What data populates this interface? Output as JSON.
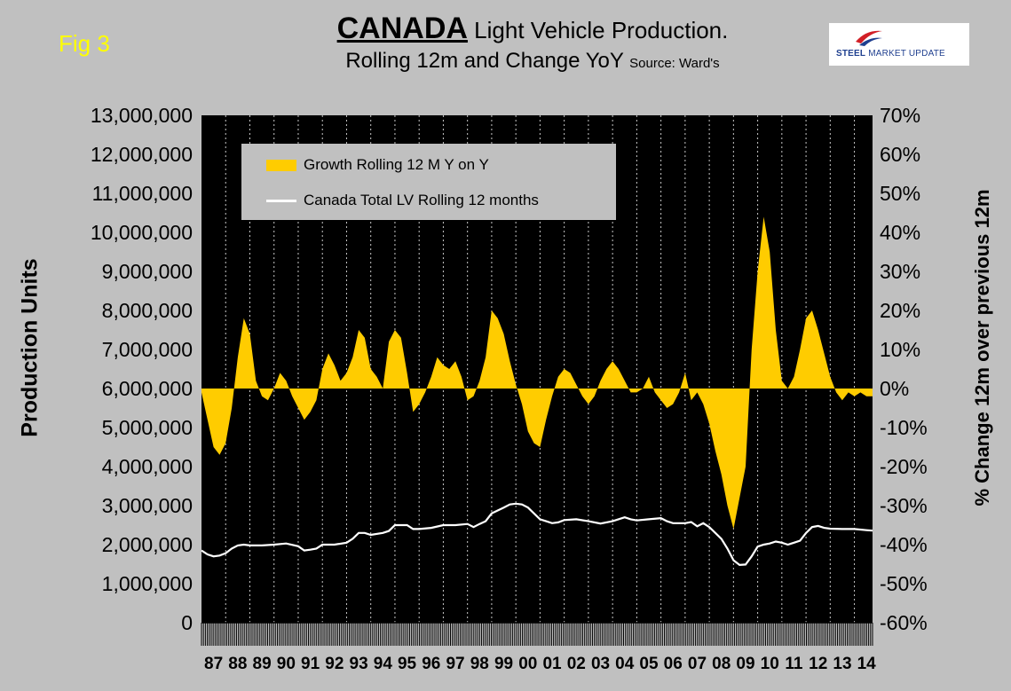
{
  "header": {
    "fig_label": "Fig 3",
    "title_main": "CANADA",
    "title_rest": "Light Vehicle Production.",
    "title_line2": "Rolling 12m and Change YoY",
    "source": "Source: Ward's",
    "logo_bold": "STEEL",
    "logo_rest": "MARKET UPDATE"
  },
  "chart_data": {
    "type": "area",
    "ylabel": "Production Units",
    "y2label": "% Change 12m over previous 12m",
    "left_axis": {
      "min": 0,
      "max": 13000000,
      "step": 1000000,
      "tick_labels": [
        "0",
        "1,000,000",
        "2,000,000",
        "3,000,000",
        "4,000,000",
        "5,000,000",
        "6,000,000",
        "7,000,000",
        "8,000,000",
        "9,000,000",
        "10,000,000",
        "11,000,000",
        "12,000,000",
        "13,000,000"
      ]
    },
    "right_axis": {
      "min": -60,
      "max": 70,
      "step": 10,
      "unit": "%",
      "tick_labels": [
        "-60%",
        "-50%",
        "-40%",
        "-30%",
        "-20%",
        "-10%",
        "0%",
        "10%",
        "20%",
        "30%",
        "40%",
        "50%",
        "60%",
        "70%"
      ]
    },
    "x_categories": [
      "87",
      "88",
      "89",
      "90",
      "91",
      "92",
      "93",
      "94",
      "95",
      "96",
      "97",
      "98",
      "99",
      "00",
      "01",
      "02",
      "03",
      "04",
      "05",
      "06",
      "07",
      "08",
      "09",
      "10",
      "11",
      "12",
      "13",
      "14"
    ],
    "x_range": [
      1987.0,
      2014.75
    ],
    "grid": "vertical-yearly",
    "legend_position": "top-left",
    "series": [
      {
        "name": "Growth Rolling 12 M Y on Y",
        "kind": "area",
        "axis": "right",
        "color": "#ffcc00",
        "points": [
          [
            1987.0,
            -1
          ],
          [
            1987.25,
            -8
          ],
          [
            1987.5,
            -15
          ],
          [
            1987.75,
            -17
          ],
          [
            1988.0,
            -14
          ],
          [
            1988.25,
            -5
          ],
          [
            1988.5,
            8
          ],
          [
            1988.75,
            18
          ],
          [
            1989.0,
            14
          ],
          [
            1989.25,
            2
          ],
          [
            1989.5,
            -2
          ],
          [
            1989.75,
            -3
          ],
          [
            1990.0,
            0
          ],
          [
            1990.25,
            4
          ],
          [
            1990.5,
            2
          ],
          [
            1990.75,
            -2
          ],
          [
            1991.0,
            -5
          ],
          [
            1991.25,
            -8
          ],
          [
            1991.5,
            -6
          ],
          [
            1991.75,
            -3
          ],
          [
            1992.0,
            5
          ],
          [
            1992.25,
            9
          ],
          [
            1992.5,
            6
          ],
          [
            1992.75,
            2
          ],
          [
            1993.0,
            4
          ],
          [
            1993.25,
            8
          ],
          [
            1993.5,
            15
          ],
          [
            1993.75,
            13
          ],
          [
            1994.0,
            5
          ],
          [
            1994.25,
            3
          ],
          [
            1994.5,
            0
          ],
          [
            1994.75,
            12
          ],
          [
            1995.0,
            15
          ],
          [
            1995.25,
            13
          ],
          [
            1995.5,
            4
          ],
          [
            1995.75,
            -6
          ],
          [
            1996.0,
            -4
          ],
          [
            1996.25,
            -1
          ],
          [
            1996.5,
            3
          ],
          [
            1996.75,
            8
          ],
          [
            1997.0,
            6
          ],
          [
            1997.25,
            5
          ],
          [
            1997.5,
            7
          ],
          [
            1997.75,
            3
          ],
          [
            1998.0,
            -3
          ],
          [
            1998.25,
            -2
          ],
          [
            1998.5,
            2
          ],
          [
            1998.75,
            8
          ],
          [
            1999.0,
            20
          ],
          [
            1999.25,
            18
          ],
          [
            1999.5,
            14
          ],
          [
            1999.75,
            7
          ],
          [
            2000.0,
            1
          ],
          [
            2000.25,
            -4
          ],
          [
            2000.5,
            -11
          ],
          [
            2000.75,
            -14
          ],
          [
            2001.0,
            -15
          ],
          [
            2001.25,
            -8
          ],
          [
            2001.5,
            -2
          ],
          [
            2001.75,
            3
          ],
          [
            2002.0,
            5
          ],
          [
            2002.25,
            4
          ],
          [
            2002.5,
            1
          ],
          [
            2002.75,
            -2
          ],
          [
            2003.0,
            -4
          ],
          [
            2003.25,
            -2
          ],
          [
            2003.5,
            2
          ],
          [
            2003.75,
            5
          ],
          [
            2004.0,
            7
          ],
          [
            2004.25,
            5
          ],
          [
            2004.5,
            2
          ],
          [
            2004.75,
            -1
          ],
          [
            2005.0,
            -1
          ],
          [
            2005.25,
            0
          ],
          [
            2005.5,
            3
          ],
          [
            2005.75,
            -1
          ],
          [
            2006.0,
            -3
          ],
          [
            2006.25,
            -5
          ],
          [
            2006.5,
            -4
          ],
          [
            2006.75,
            -1
          ],
          [
            2007.0,
            4
          ],
          [
            2007.25,
            -3
          ],
          [
            2007.5,
            -1
          ],
          [
            2007.75,
            -4
          ],
          [
            2008.0,
            -9
          ],
          [
            2008.25,
            -16
          ],
          [
            2008.5,
            -22
          ],
          [
            2008.75,
            -30
          ],
          [
            2009.0,
            -36
          ],
          [
            2009.25,
            -28
          ],
          [
            2009.5,
            -20
          ],
          [
            2009.75,
            10
          ],
          [
            2010.0,
            30
          ],
          [
            2010.25,
            44
          ],
          [
            2010.5,
            35
          ],
          [
            2010.75,
            15
          ],
          [
            2011.0,
            2
          ],
          [
            2011.25,
            0
          ],
          [
            2011.5,
            3
          ],
          [
            2011.75,
            10
          ],
          [
            2012.0,
            18
          ],
          [
            2012.25,
            20
          ],
          [
            2012.5,
            15
          ],
          [
            2012.75,
            9
          ],
          [
            2013.0,
            3
          ],
          [
            2013.25,
            -1
          ],
          [
            2013.5,
            -3
          ],
          [
            2013.75,
            -1
          ],
          [
            2014.0,
            -2
          ],
          [
            2014.25,
            -1
          ],
          [
            2014.5,
            -2
          ],
          [
            2014.75,
            -2
          ]
        ]
      },
      {
        "name": "Canada Total LV Rolling 12 months",
        "kind": "line",
        "axis": "left",
        "color": "#ffffff",
        "points": [
          [
            1987.0,
            1850000
          ],
          [
            1987.25,
            1750000
          ],
          [
            1987.5,
            1700000
          ],
          [
            1987.75,
            1720000
          ],
          [
            1988.0,
            1780000
          ],
          [
            1988.25,
            1900000
          ],
          [
            1988.5,
            1980000
          ],
          [
            1988.75,
            2000000
          ],
          [
            1989.0,
            1980000
          ],
          [
            1989.5,
            1980000
          ],
          [
            1990.0,
            2000000
          ],
          [
            1990.5,
            2030000
          ],
          [
            1991.0,
            1960000
          ],
          [
            1991.25,
            1850000
          ],
          [
            1991.5,
            1870000
          ],
          [
            1991.75,
            1900000
          ],
          [
            1992.0,
            2000000
          ],
          [
            1992.5,
            2000000
          ],
          [
            1993.0,
            2050000
          ],
          [
            1993.25,
            2150000
          ],
          [
            1993.5,
            2300000
          ],
          [
            1993.75,
            2300000
          ],
          [
            1994.0,
            2250000
          ],
          [
            1994.5,
            2300000
          ],
          [
            1994.75,
            2350000
          ],
          [
            1995.0,
            2500000
          ],
          [
            1995.5,
            2500000
          ],
          [
            1995.75,
            2400000
          ],
          [
            1996.0,
            2400000
          ],
          [
            1996.5,
            2430000
          ],
          [
            1997.0,
            2500000
          ],
          [
            1997.5,
            2500000
          ],
          [
            1998.0,
            2530000
          ],
          [
            1998.25,
            2450000
          ],
          [
            1998.5,
            2530000
          ],
          [
            1998.75,
            2600000
          ],
          [
            1999.0,
            2800000
          ],
          [
            1999.5,
            2950000
          ],
          [
            1999.75,
            3030000
          ],
          [
            2000.0,
            3050000
          ],
          [
            2000.25,
            3030000
          ],
          [
            2000.5,
            2950000
          ],
          [
            2000.75,
            2800000
          ],
          [
            2001.0,
            2650000
          ],
          [
            2001.25,
            2600000
          ],
          [
            2001.5,
            2550000
          ],
          [
            2001.75,
            2570000
          ],
          [
            2002.0,
            2630000
          ],
          [
            2002.5,
            2650000
          ],
          [
            2003.0,
            2600000
          ],
          [
            2003.5,
            2540000
          ],
          [
            2004.0,
            2600000
          ],
          [
            2004.5,
            2700000
          ],
          [
            2004.75,
            2650000
          ],
          [
            2005.0,
            2620000
          ],
          [
            2005.5,
            2650000
          ],
          [
            2006.0,
            2680000
          ],
          [
            2006.25,
            2600000
          ],
          [
            2006.5,
            2550000
          ],
          [
            2007.0,
            2550000
          ],
          [
            2007.25,
            2580000
          ],
          [
            2007.5,
            2470000
          ],
          [
            2007.75,
            2550000
          ],
          [
            2008.0,
            2450000
          ],
          [
            2008.25,
            2300000
          ],
          [
            2008.5,
            2150000
          ],
          [
            2008.75,
            1900000
          ],
          [
            2009.0,
            1600000
          ],
          [
            2009.25,
            1480000
          ],
          [
            2009.5,
            1490000
          ],
          [
            2009.75,
            1700000
          ],
          [
            2010.0,
            1950000
          ],
          [
            2010.25,
            2000000
          ],
          [
            2010.5,
            2030000
          ],
          [
            2010.75,
            2080000
          ],
          [
            2011.0,
            2050000
          ],
          [
            2011.25,
            2000000
          ],
          [
            2011.5,
            2050000
          ],
          [
            2011.75,
            2100000
          ],
          [
            2012.0,
            2300000
          ],
          [
            2012.25,
            2450000
          ],
          [
            2012.5,
            2480000
          ],
          [
            2012.75,
            2430000
          ],
          [
            2013.0,
            2410000
          ],
          [
            2013.5,
            2400000
          ],
          [
            2014.0,
            2400000
          ],
          [
            2014.5,
            2370000
          ],
          [
            2014.75,
            2360000
          ]
        ]
      }
    ]
  }
}
